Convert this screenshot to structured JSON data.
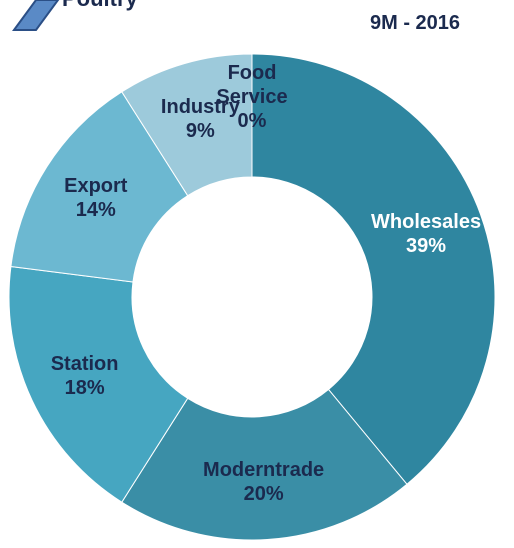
{
  "chart_data": {
    "type": "donut",
    "title": "Poultry",
    "subtitle": "9M - 2016",
    "categories": [
      "Wholesales",
      "Moderntrade",
      "Station",
      "Export",
      "Industry",
      "Food Service"
    ],
    "values": [
      39,
      20,
      18,
      14,
      9,
      0
    ],
    "value_labels": [
      "39%",
      "20%",
      "18%",
      "14%",
      "9%",
      "0%"
    ],
    "colors": [
      "#2f86a0",
      "#3a8ea6",
      "#46a6c1",
      "#6cb8d1",
      "#9dcadb",
      "#d9e9ef"
    ]
  }
}
